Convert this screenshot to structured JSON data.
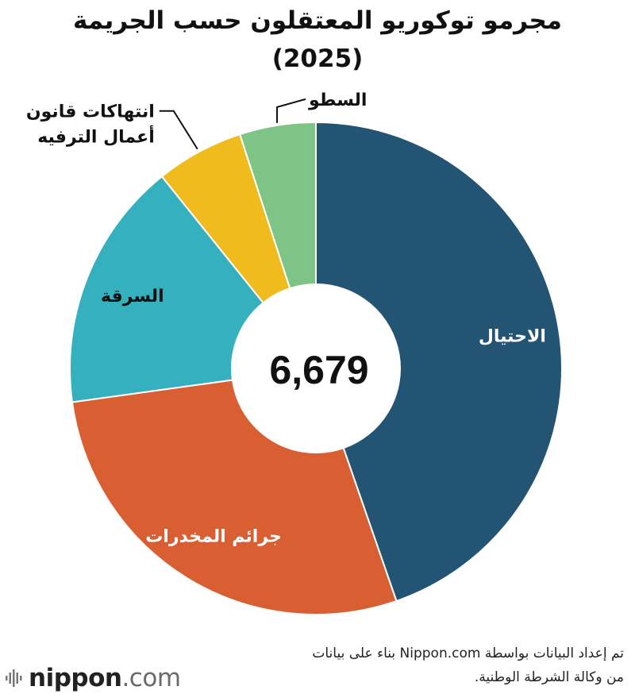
{
  "title": {
    "line1": "مجرمو توكوريو المعتقلون حسب الجريمة",
    "line2": "(2025)"
  },
  "chart_data": {
    "type": "pie",
    "donut": true,
    "center_label": "6,679",
    "total": 6679,
    "slices": [
      {
        "label": "الاحتيال",
        "value": 2985,
        "color": "#235473",
        "label_color": "#ffffff"
      },
      {
        "label": "جرائم المخدرات",
        "value": 1878,
        "color": "#d95f33",
        "label_color": "#ffffff"
      },
      {
        "label": "السرقة",
        "value": 1097,
        "color": "#35b0bf",
        "label_color": "#111111"
      },
      {
        "label": "انتهاكات قانون أعمال الترفيه",
        "value": 385,
        "color": "#f0bb1d",
        "label_color": "#111111"
      },
      {
        "label": "السطو",
        "value": 334,
        "color": "#7ec487",
        "label_color": "#111111"
      }
    ],
    "callout_labels": {
      "entertainment_line1": "انتهاكات قانون",
      "entertainment_line2": "أعمال الترفيه"
    }
  },
  "footer": {
    "source_line1": "تم إعداد البيانات بواسطة Nippon.com بناء على بيانات",
    "source_line2": "من وكالة الشرطة الوطنية."
  },
  "logo": {
    "brand": "nippon",
    "dotcom": ".com"
  }
}
